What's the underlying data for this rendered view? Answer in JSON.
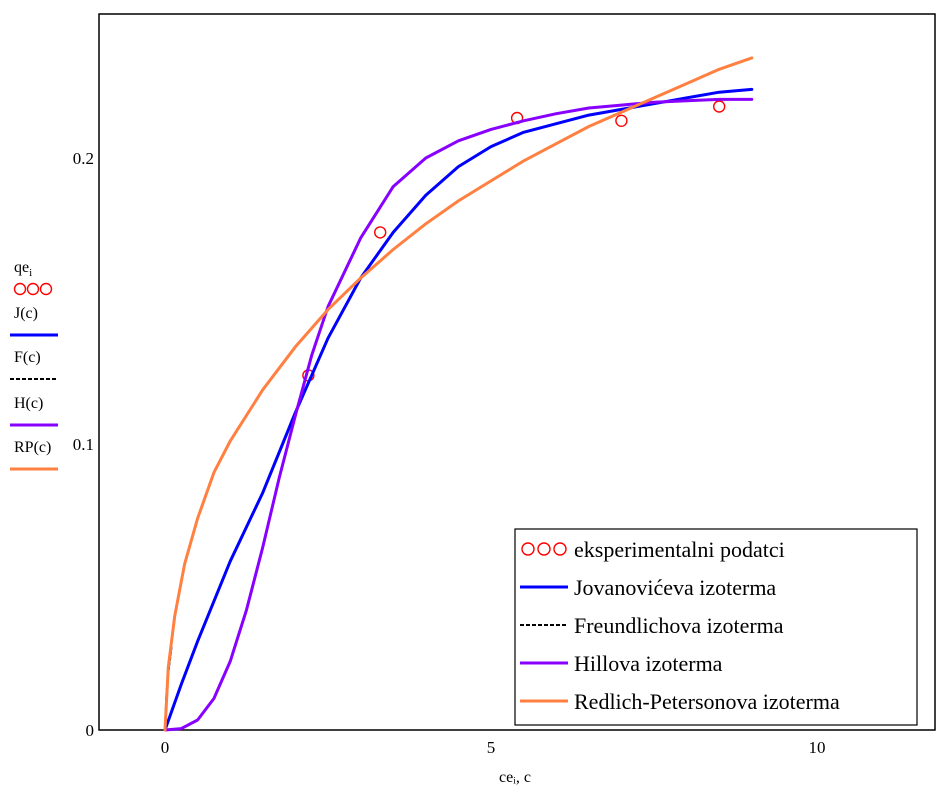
{
  "chart_data": {
    "type": "line",
    "xlabel": "ceᵢ, c",
    "ylabel": "",
    "xlim": [
      -2,
      12
    ],
    "ylim": [
      0,
      0.25
    ],
    "x_ticks": [
      0,
      5,
      10
    ],
    "x_tick_labels": [
      "0",
      "5",
      "10"
    ],
    "y_ticks": [
      0,
      0.1,
      0.2
    ],
    "y_tick_labels": [
      "0",
      "0.1",
      "0.2"
    ],
    "grid": false,
    "legend_position": "bottom-right",
    "side_legend": [
      {
        "label": "qe",
        "subscript": "i",
        "marker": "circle",
        "color": "#ff0000"
      },
      {
        "label": "J(c)",
        "marker": "line",
        "color": "#0000ff"
      },
      {
        "label": "F(c)",
        "marker": "dashed",
        "color": "#000000"
      },
      {
        "label": "H(c)",
        "marker": "line",
        "color": "#8800ff"
      },
      {
        "label": "RP(c)",
        "marker": "line",
        "color": "#ff8040"
      }
    ],
    "series": [
      {
        "name": "eksperimentalni podatci",
        "kind": "scatter",
        "color": "#ff0000",
        "x": [
          2.2,
          3.3,
          5.4,
          7.0,
          8.5
        ],
        "y": [
          0.124,
          0.174,
          0.214,
          0.213,
          0.218
        ]
      },
      {
        "name": "Jovanovićeva izoterma",
        "kind": "line",
        "color": "#0000ff",
        "x": [
          0,
          0.25,
          0.5,
          0.75,
          1,
          1.5,
          2,
          2.5,
          3,
          3.5,
          4,
          4.5,
          5,
          5.5,
          6,
          6.5,
          7,
          7.5,
          8,
          8.5,
          9
        ],
        "y": [
          0,
          0.016,
          0.031,
          0.045,
          0.059,
          0.083,
          0.111,
          0.137,
          0.158,
          0.174,
          0.187,
          0.197,
          0.204,
          0.209,
          0.212,
          0.215,
          0.217,
          0.219,
          0.221,
          0.223,
          0.224
        ]
      },
      {
        "name": "Freundlichova izoterma",
        "kind": "dashed",
        "color": "#000000",
        "x": [
          0,
          0.02,
          0.05,
          0.1
        ],
        "y": [
          0,
          0.012,
          0.02,
          0.029
        ]
      },
      {
        "name": "Hillova izoterma",
        "kind": "line",
        "color": "#8800ff",
        "x": [
          0,
          0.25,
          0.5,
          0.75,
          1,
          1.25,
          1.5,
          1.75,
          2,
          2.25,
          2.5,
          3,
          3.5,
          4,
          4.5,
          5,
          5.5,
          6,
          6.5,
          7,
          7.5,
          8,
          8.5,
          9
        ],
        "y": [
          0,
          0.0005,
          0.0035,
          0.011,
          0.024,
          0.042,
          0.064,
          0.088,
          0.11,
          0.131,
          0.148,
          0.172,
          0.19,
          0.2,
          0.206,
          0.21,
          0.213,
          0.2155,
          0.2175,
          0.2185,
          0.2195,
          0.22,
          0.2205,
          0.2205
        ]
      },
      {
        "name": "Redlich-Petersonova izoterma",
        "kind": "line",
        "color": "#ff8040",
        "x": [
          0,
          0.05,
          0.15,
          0.3,
          0.5,
          0.75,
          1,
          1.5,
          2,
          2.5,
          3,
          3.5,
          4,
          4.5,
          5,
          5.5,
          6,
          6.5,
          7,
          7.5,
          8,
          8.5,
          9
        ],
        "y": [
          0,
          0.022,
          0.04,
          0.058,
          0.074,
          0.09,
          0.101,
          0.119,
          0.134,
          0.147,
          0.158,
          0.168,
          0.177,
          0.185,
          0.192,
          0.199,
          0.205,
          0.211,
          0.216,
          0.221,
          0.226,
          0.231,
          0.235
        ]
      }
    ]
  }
}
